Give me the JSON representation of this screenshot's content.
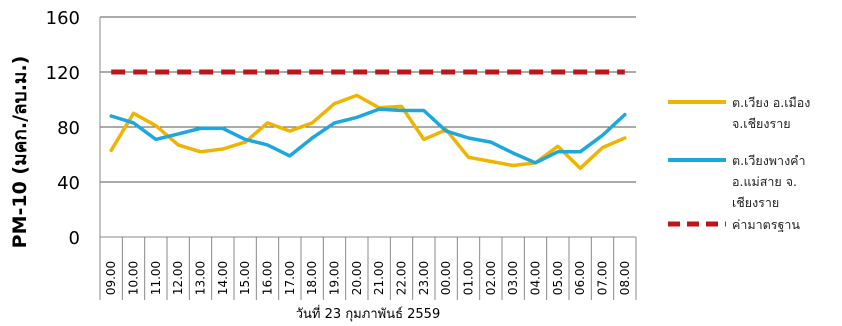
{
  "chart_data": {
    "type": "line",
    "xlabel": "วันที่ 23 กุมภาพันธ์ 2559",
    "ylabel": "PM-10  (มคก./ลบ.ม.)",
    "ylim": [
      0,
      160
    ],
    "yticks": [
      0,
      40,
      80,
      120,
      160
    ],
    "grid": true,
    "legend_position": "right",
    "categories": [
      "09.00",
      "10.00",
      "11.00",
      "12.00",
      "13.00",
      "14.00",
      "15.00",
      "16.00",
      "17.00",
      "18.00",
      "19.00",
      "20.00",
      "21.00",
      "22.00",
      "23.00",
      "00.00",
      "01.00",
      "02.00",
      "03.00",
      "04.00",
      "05.00",
      "06.00",
      "07.00",
      "08.00"
    ],
    "series": [
      {
        "name_lines": [
          "ต.เวียง อ.เมือง",
          "จ.เชียงราย"
        ],
        "color": "#f0b400",
        "style": "solid",
        "values": [
          63,
          90,
          81,
          67,
          62,
          64,
          69,
          83,
          77,
          83,
          97,
          103,
          94,
          95,
          71,
          78,
          58,
          55,
          52,
          54,
          66,
          50,
          65,
          72
        ]
      },
      {
        "name_lines": [
          "ต.เวียงพางคำ",
          "อ.แม่สาย จ.",
          "เชียงราย"
        ],
        "color": "#1ea7de",
        "style": "solid",
        "values": [
          88,
          83,
          71,
          75,
          79,
          79,
          71,
          67,
          59,
          72,
          83,
          87,
          93,
          92,
          92,
          77,
          72,
          69,
          61,
          54,
          62,
          62,
          74,
          89
        ]
      },
      {
        "name_lines": [
          "ค่ามาตรฐาน"
        ],
        "color": "#c0141c",
        "style": "dashed",
        "values": [
          120,
          120,
          120,
          120,
          120,
          120,
          120,
          120,
          120,
          120,
          120,
          120,
          120,
          120,
          120,
          120,
          120,
          120,
          120,
          120,
          120,
          120,
          120,
          120
        ]
      }
    ]
  }
}
